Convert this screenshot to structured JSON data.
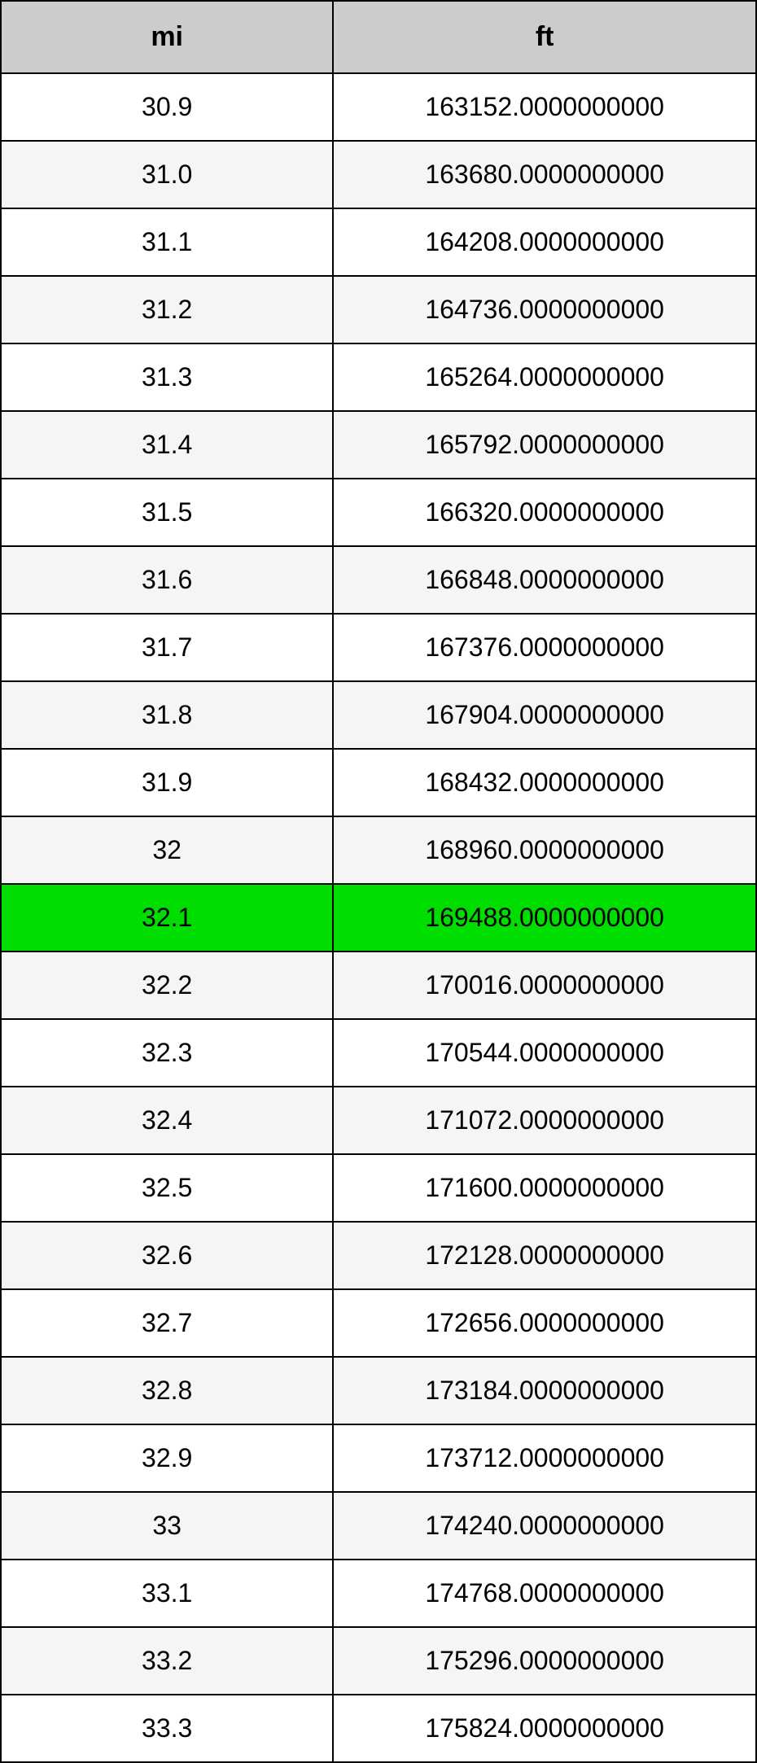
{
  "table": {
    "type": "table",
    "columns": [
      {
        "key": "mi",
        "label": "mi",
        "width_pct": 44
      },
      {
        "key": "ft",
        "label": "ft",
        "width_pct": 56
      }
    ],
    "header_bg": "#cccccc",
    "header_font_size": 34,
    "cell_font_size": 32,
    "border_color": "#000000",
    "row_bg_odd": "#ffffff",
    "row_bg_even": "#f5f5f5",
    "highlight_bg": "#00dd00",
    "highlight_index": 13,
    "rows": [
      {
        "mi": "30.9",
        "ft": "163152.0000000000"
      },
      {
        "mi": "31.0",
        "ft": "163680.0000000000"
      },
      {
        "mi": "31.1",
        "ft": "164208.0000000000"
      },
      {
        "mi": "31.2",
        "ft": "164736.0000000000"
      },
      {
        "mi": "31.3",
        "ft": "165264.0000000000"
      },
      {
        "mi": "31.4",
        "ft": "165792.0000000000"
      },
      {
        "mi": "31.5",
        "ft": "166320.0000000000"
      },
      {
        "mi": "31.6",
        "ft": "166848.0000000000"
      },
      {
        "mi": "31.7",
        "ft": "167376.0000000000"
      },
      {
        "mi": "31.8",
        "ft": "167904.0000000000"
      },
      {
        "mi": "31.9",
        "ft": "168432.0000000000"
      },
      {
        "mi": "32",
        "ft": "168960.0000000000"
      },
      {
        "mi": "32.1",
        "ft": "169488.0000000000"
      },
      {
        "mi": "32.2",
        "ft": "170016.0000000000"
      },
      {
        "mi": "32.3",
        "ft": "170544.0000000000"
      },
      {
        "mi": "32.4",
        "ft": "171072.0000000000"
      },
      {
        "mi": "32.5",
        "ft": "171600.0000000000"
      },
      {
        "mi": "32.6",
        "ft": "172128.0000000000"
      },
      {
        "mi": "32.7",
        "ft": "172656.0000000000"
      },
      {
        "mi": "32.8",
        "ft": "173184.0000000000"
      },
      {
        "mi": "32.9",
        "ft": "173712.0000000000"
      },
      {
        "mi": "33",
        "ft": "174240.0000000000"
      },
      {
        "mi": "33.1",
        "ft": "174768.0000000000"
      },
      {
        "mi": "33.2",
        "ft": "175296.0000000000"
      },
      {
        "mi": "33.3",
        "ft": "175824.0000000000"
      }
    ]
  }
}
